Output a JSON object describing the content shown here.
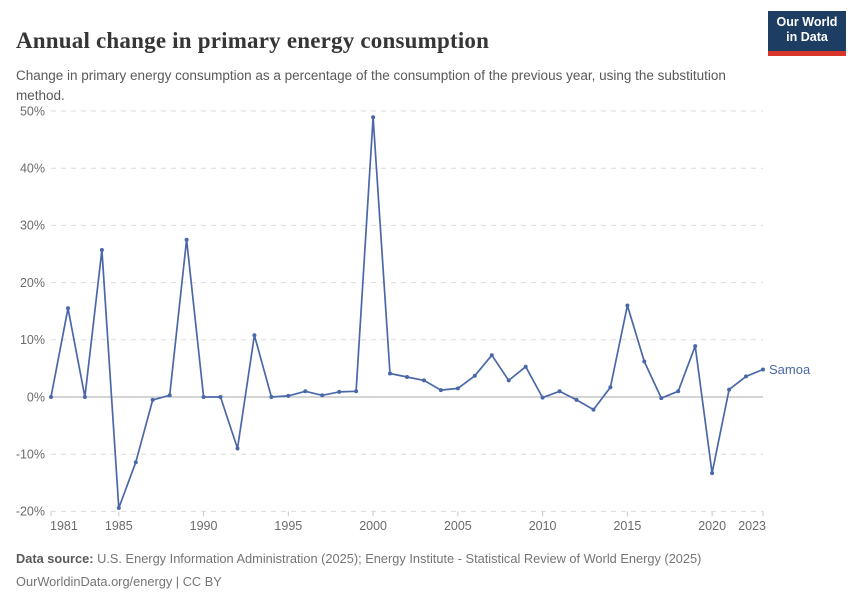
{
  "header": {
    "title": "Annual change in primary energy consumption",
    "subtitle": "Change in primary energy consumption as a percentage of the consumption of the previous year, using the substitution method.",
    "logo": {
      "line1": "Our World",
      "line2": "in Data",
      "bg_color": "#1d3d63",
      "accent_color": "#d8352b",
      "text_color": "#ffffff"
    }
  },
  "chart_data": {
    "type": "line",
    "title": "Annual change in primary energy consumption",
    "xlabel": "",
    "ylabel": "",
    "x": [
      1981,
      1982,
      1983,
      1984,
      1985,
      1986,
      1987,
      1988,
      1989,
      1990,
      1991,
      1992,
      1993,
      1994,
      1995,
      1996,
      1997,
      1998,
      1999,
      2000,
      2001,
      2002,
      2003,
      2004,
      2005,
      2006,
      2007,
      2008,
      2009,
      2010,
      2011,
      2012,
      2013,
      2014,
      2015,
      2016,
      2017,
      2018,
      2019,
      2020,
      2021,
      2022,
      2023
    ],
    "series": [
      {
        "name": "Samoa",
        "color": "#4a68a8",
        "values": [
          0,
          15.5,
          0,
          25.7,
          -19.4,
          -11.4,
          -0.5,
          0.3,
          27.5,
          0,
          0,
          -9.0,
          10.8,
          0,
          0.2,
          1.0,
          0.3,
          0.9,
          1.0,
          48.9,
          4.1,
          3.5,
          2.9,
          1.2,
          1.5,
          3.7,
          7.3,
          2.9,
          5.3,
          -0.1,
          1.0,
          -0.5,
          -2.2,
          1.7,
          16.0,
          6.2,
          -0.2,
          1.0,
          8.9,
          -13.3,
          1.3,
          3.6,
          4.8
        ]
      }
    ],
    "xlim": [
      1981,
      2023
    ],
    "ylim": [
      -20,
      50
    ],
    "yticks": [
      50,
      40,
      30,
      20,
      10,
      0,
      -10,
      -20
    ],
    "ytick_suffix": "%",
    "xticks": [
      1981,
      1985,
      1990,
      1995,
      2000,
      2005,
      2010,
      2015,
      2020,
      2023
    ],
    "grid": "horizontal-dashed",
    "grid_color": "#dcdcdc",
    "zero_line_color": "#a8a8a8",
    "tick_color": "#c9c9c9",
    "tick_label_color": "#6b6b6b",
    "legend_position": "end-of-line",
    "end_label": "Samoa"
  },
  "footer": {
    "source_label": "Data source:",
    "source_text": "U.S. Energy Information Administration (2025); Energy Institute - Statistical Review of World Energy (2025)",
    "link": "OurWorldinData.org/energy",
    "separator": " | ",
    "license": "CC BY"
  }
}
